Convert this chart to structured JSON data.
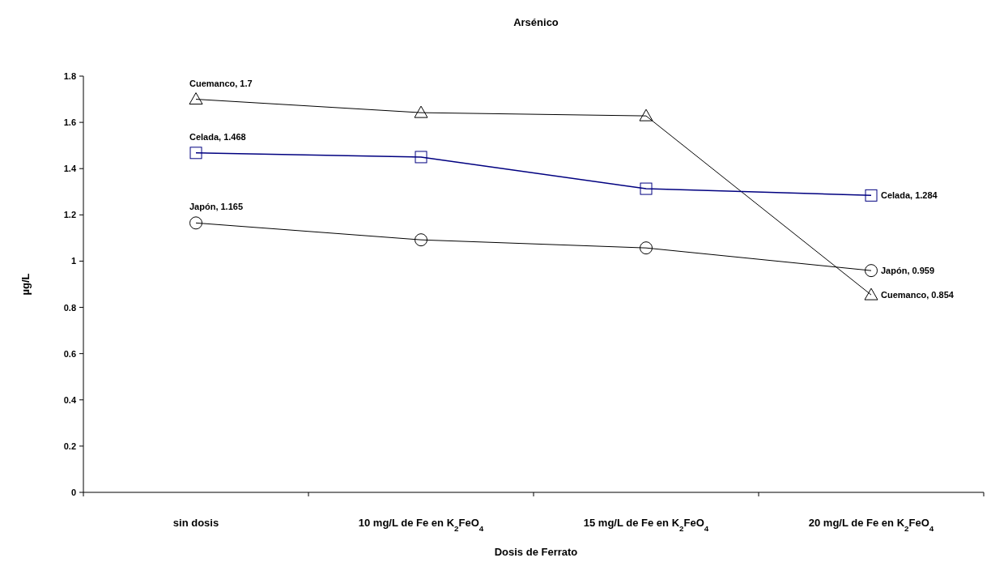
{
  "chart_data": {
    "type": "line",
    "title": "Arsénico",
    "xlabel": "Dosis de Ferrato",
    "ylabel": "µg/L",
    "categories": [
      "sin dosis",
      "10 mg/L de Fe en K$_{2}$FeO$_{4}$",
      "15 mg/L de Fe en K$_{2}$FeO$_{4}$",
      "20 mg/L de Fe en K$_{2}$FeO$_{4}$"
    ],
    "ylim": [
      0,
      1.8
    ],
    "yticks": [
      0,
      0.2,
      0.4,
      0.6,
      0.8,
      1,
      1.2,
      1.4,
      1.6,
      1.8
    ],
    "grid": false,
    "legend": false,
    "series": [
      {
        "color": "#000000",
        "marker": "triangle",
        "values": [
          1.7,
          1.642,
          1.628,
          0.854
        ],
        "value_labels": [
          "Cuemanco, 1.7",
          null,
          null,
          "Cuemanco, 0.854"
        ]
      },
      {
        "color": "#000080",
        "marker": "square",
        "values": [
          1.468,
          1.45,
          1.313,
          1.284
        ],
        "value_labels": [
          "Celada, 1.468",
          null,
          null,
          "Celada, 1.284"
        ]
      },
      {
        "color": "#000000",
        "marker": "circle",
        "values": [
          1.165,
          1.092,
          1.057,
          0.959
        ],
        "value_labels": [
          "Japón, 1.165",
          null,
          null,
          "Japón, 0.959"
        ]
      }
    ]
  }
}
